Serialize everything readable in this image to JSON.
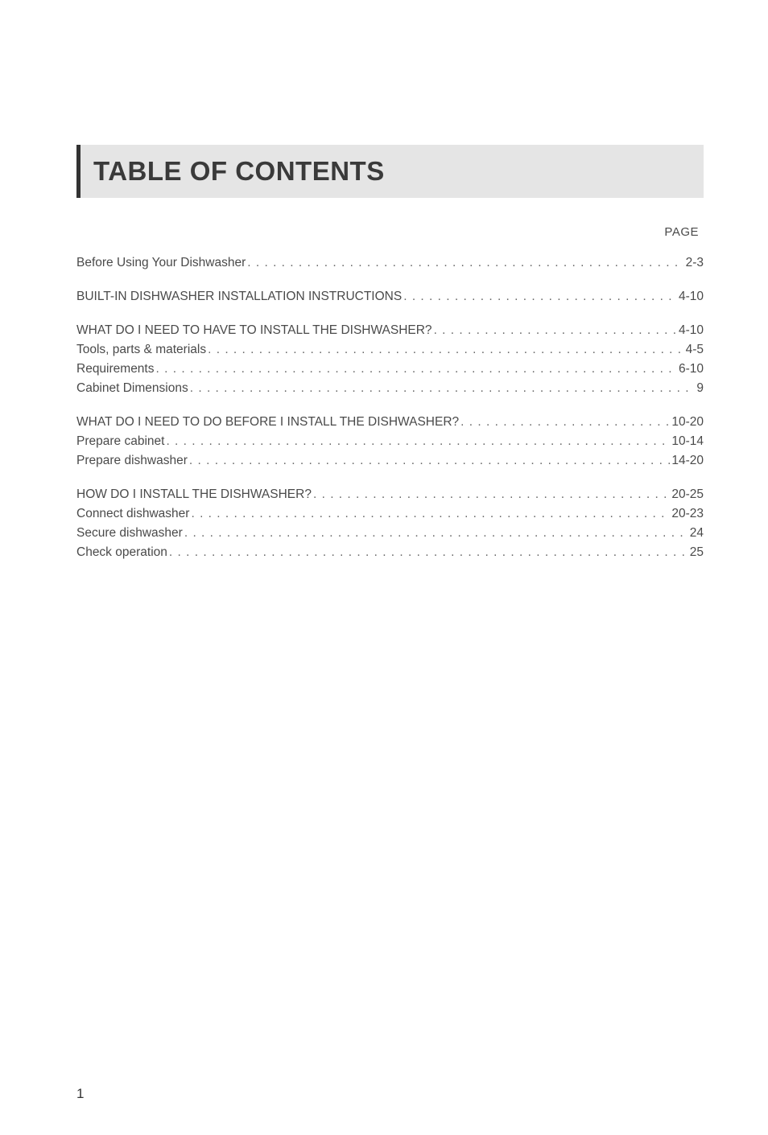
{
  "title": "TABLE OF CONTENTS",
  "page_label": "PAGE",
  "page_number": "1",
  "colors": {
    "background": "#ffffff",
    "title_bg": "#e5e5e5",
    "title_border": "#333333",
    "text": "#4a4a4a",
    "dots": "#6a6a6a"
  },
  "typography": {
    "title_fontsize": 33,
    "body_fontsize": 15.5,
    "line_height": 1.55
  },
  "groups": [
    [
      {
        "label": "Before Using Your Dishwasher",
        "page": "2-3"
      }
    ],
    [
      {
        "label": "BUILT-IN DISHWASHER INSTALLATION INSTRUCTIONS",
        "page": "4-10"
      }
    ],
    [
      {
        "label": "WHAT DO I NEED TO HAVE TO INSTALL THE DISHWASHER?",
        "page": "4-10"
      },
      {
        "label": "Tools, parts & materials",
        "page": "4-5"
      },
      {
        "label": "Requirements",
        "page": "6-10"
      },
      {
        "label": "Cabinet Dimensions",
        "page": "9"
      }
    ],
    [
      {
        "label": "WHAT DO I NEED TO DO BEFORE I INSTALL THE DISHWASHER?",
        "page": "10-20"
      },
      {
        "label": "Prepare cabinet",
        "page": "10-14"
      },
      {
        "label": "Prepare dishwasher",
        "page": "14-20"
      }
    ],
    [
      {
        "label": "HOW DO I INSTALL THE DISHWASHER?",
        "page": "20-25"
      },
      {
        "label": "Connect dishwasher",
        "page": "20-23"
      },
      {
        "label": "Secure dishwasher",
        "page": "24"
      },
      {
        "label": "Check operation",
        "page": "25"
      }
    ]
  ]
}
